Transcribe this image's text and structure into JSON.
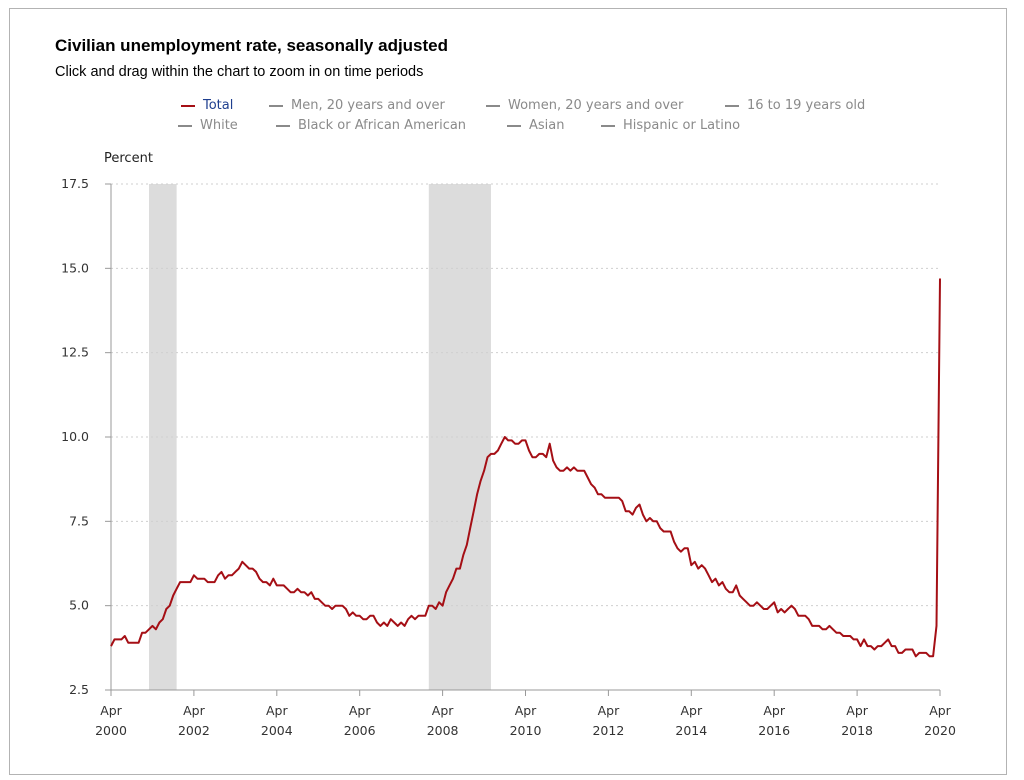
{
  "header": {
    "title": "Civilian unemployment rate, seasonally adjusted",
    "subtitle": "Click and drag within the chart to zoom in on time periods"
  },
  "legend": {
    "items": [
      {
        "label": "Total",
        "active": true
      },
      {
        "label": "Men, 20 years and over",
        "active": false
      },
      {
        "label": "Women, 20 years and over",
        "active": false
      },
      {
        "label": "16 to 19 years old",
        "active": false
      },
      {
        "label": "White",
        "active": false
      },
      {
        "label": "Black or African American",
        "active": false
      },
      {
        "label": "Asian",
        "active": false
      },
      {
        "label": "Hispanic or Latino",
        "active": false
      }
    ]
  },
  "colors": {
    "series_line": "#a50f15",
    "active_legend_text": "#1f3f8f",
    "inactive_legend": "#8a8a8a",
    "recession_band": "#dcdcdc",
    "gridline": "#cfcfcf",
    "axis": "#999999"
  },
  "chart_data": {
    "type": "line",
    "title": "Civilian unemployment rate, seasonally adjusted",
    "ylabel": "Percent",
    "xlabel": "",
    "ylim": [
      2.5,
      17.5
    ],
    "yticks": [
      "2.5",
      "5.0",
      "7.5",
      "10.0",
      "12.5",
      "15.0",
      "17.5"
    ],
    "xticks": [
      {
        "month": "Apr",
        "year": "2000",
        "date": "2000-04"
      },
      {
        "month": "Apr",
        "year": "2002",
        "date": "2002-04"
      },
      {
        "month": "Apr",
        "year": "2004",
        "date": "2004-04"
      },
      {
        "month": "Apr",
        "year": "2006",
        "date": "2006-04"
      },
      {
        "month": "Apr",
        "year": "2008",
        "date": "2008-04"
      },
      {
        "month": "Apr",
        "year": "2010",
        "date": "2010-04"
      },
      {
        "month": "Apr",
        "year": "2012",
        "date": "2012-04"
      },
      {
        "month": "Apr",
        "year": "2014",
        "date": "2014-04"
      },
      {
        "month": "Apr",
        "year": "2016",
        "date": "2016-04"
      },
      {
        "month": "Apr",
        "year": "2018",
        "date": "2018-04"
      },
      {
        "month": "Apr",
        "year": "2020",
        "date": "2020-04"
      }
    ],
    "grid": "horizontal dotted",
    "legend_placement": "top",
    "recession_bands": [
      {
        "start": "2001-03",
        "end": "2001-11"
      },
      {
        "start": "2007-12",
        "end": "2009-06"
      }
    ],
    "series": [
      {
        "name": "Total",
        "points": [
          [
            "2000-04",
            3.8
          ],
          [
            "2000-05",
            4.0
          ],
          [
            "2000-06",
            4.0
          ],
          [
            "2000-07",
            4.0
          ],
          [
            "2000-08",
            4.1
          ],
          [
            "2000-09",
            3.9
          ],
          [
            "2000-10",
            3.9
          ],
          [
            "2000-11",
            3.9
          ],
          [
            "2000-12",
            3.9
          ],
          [
            "2001-01",
            4.2
          ],
          [
            "2001-02",
            4.2
          ],
          [
            "2001-03",
            4.3
          ],
          [
            "2001-04",
            4.4
          ],
          [
            "2001-05",
            4.3
          ],
          [
            "2001-06",
            4.5
          ],
          [
            "2001-07",
            4.6
          ],
          [
            "2001-08",
            4.9
          ],
          [
            "2001-09",
            5.0
          ],
          [
            "2001-10",
            5.3
          ],
          [
            "2001-11",
            5.5
          ],
          [
            "2001-12",
            5.7
          ],
          [
            "2002-01",
            5.7
          ],
          [
            "2002-02",
            5.7
          ],
          [
            "2002-03",
            5.7
          ],
          [
            "2002-04",
            5.9
          ],
          [
            "2002-05",
            5.8
          ],
          [
            "2002-06",
            5.8
          ],
          [
            "2002-07",
            5.8
          ],
          [
            "2002-08",
            5.7
          ],
          [
            "2002-09",
            5.7
          ],
          [
            "2002-10",
            5.7
          ],
          [
            "2002-11",
            5.9
          ],
          [
            "2002-12",
            6.0
          ],
          [
            "2003-01",
            5.8
          ],
          [
            "2003-02",
            5.9
          ],
          [
            "2003-03",
            5.9
          ],
          [
            "2003-04",
            6.0
          ],
          [
            "2003-05",
            6.1
          ],
          [
            "2003-06",
            6.3
          ],
          [
            "2003-07",
            6.2
          ],
          [
            "2003-08",
            6.1
          ],
          [
            "2003-09",
            6.1
          ],
          [
            "2003-10",
            6.0
          ],
          [
            "2003-11",
            5.8
          ],
          [
            "2003-12",
            5.7
          ],
          [
            "2004-01",
            5.7
          ],
          [
            "2004-02",
            5.6
          ],
          [
            "2004-03",
            5.8
          ],
          [
            "2004-04",
            5.6
          ],
          [
            "2004-05",
            5.6
          ],
          [
            "2004-06",
            5.6
          ],
          [
            "2004-07",
            5.5
          ],
          [
            "2004-08",
            5.4
          ],
          [
            "2004-09",
            5.4
          ],
          [
            "2004-10",
            5.5
          ],
          [
            "2004-11",
            5.4
          ],
          [
            "2004-12",
            5.4
          ],
          [
            "2005-01",
            5.3
          ],
          [
            "2005-02",
            5.4
          ],
          [
            "2005-03",
            5.2
          ],
          [
            "2005-04",
            5.2
          ],
          [
            "2005-05",
            5.1
          ],
          [
            "2005-06",
            5.0
          ],
          [
            "2005-07",
            5.0
          ],
          [
            "2005-08",
            4.9
          ],
          [
            "2005-09",
            5.0
          ],
          [
            "2005-10",
            5.0
          ],
          [
            "2005-11",
            5.0
          ],
          [
            "2005-12",
            4.9
          ],
          [
            "2006-01",
            4.7
          ],
          [
            "2006-02",
            4.8
          ],
          [
            "2006-03",
            4.7
          ],
          [
            "2006-04",
            4.7
          ],
          [
            "2006-05",
            4.6
          ],
          [
            "2006-06",
            4.6
          ],
          [
            "2006-07",
            4.7
          ],
          [
            "2006-08",
            4.7
          ],
          [
            "2006-09",
            4.5
          ],
          [
            "2006-10",
            4.4
          ],
          [
            "2006-11",
            4.5
          ],
          [
            "2006-12",
            4.4
          ],
          [
            "2007-01",
            4.6
          ],
          [
            "2007-02",
            4.5
          ],
          [
            "2007-03",
            4.4
          ],
          [
            "2007-04",
            4.5
          ],
          [
            "2007-05",
            4.4
          ],
          [
            "2007-06",
            4.6
          ],
          [
            "2007-07",
            4.7
          ],
          [
            "2007-08",
            4.6
          ],
          [
            "2007-09",
            4.7
          ],
          [
            "2007-10",
            4.7
          ],
          [
            "2007-11",
            4.7
          ],
          [
            "2007-12",
            5.0
          ],
          [
            "2008-01",
            5.0
          ],
          [
            "2008-02",
            4.9
          ],
          [
            "2008-03",
            5.1
          ],
          [
            "2008-04",
            5.0
          ],
          [
            "2008-05",
            5.4
          ],
          [
            "2008-06",
            5.6
          ],
          [
            "2008-07",
            5.8
          ],
          [
            "2008-08",
            6.1
          ],
          [
            "2008-09",
            6.1
          ],
          [
            "2008-10",
            6.5
          ],
          [
            "2008-11",
            6.8
          ],
          [
            "2008-12",
            7.3
          ],
          [
            "2009-01",
            7.8
          ],
          [
            "2009-02",
            8.3
          ],
          [
            "2009-03",
            8.7
          ],
          [
            "2009-04",
            9.0
          ],
          [
            "2009-05",
            9.4
          ],
          [
            "2009-06",
            9.5
          ],
          [
            "2009-07",
            9.5
          ],
          [
            "2009-08",
            9.6
          ],
          [
            "2009-09",
            9.8
          ],
          [
            "2009-10",
            10.0
          ],
          [
            "2009-11",
            9.9
          ],
          [
            "2009-12",
            9.9
          ],
          [
            "2010-01",
            9.8
          ],
          [
            "2010-02",
            9.8
          ],
          [
            "2010-03",
            9.9
          ],
          [
            "2010-04",
            9.9
          ],
          [
            "2010-05",
            9.6
          ],
          [
            "2010-06",
            9.4
          ],
          [
            "2010-07",
            9.4
          ],
          [
            "2010-08",
            9.5
          ],
          [
            "2010-09",
            9.5
          ],
          [
            "2010-10",
            9.4
          ],
          [
            "2010-11",
            9.8
          ],
          [
            "2010-12",
            9.3
          ],
          [
            "2011-01",
            9.1
          ],
          [
            "2011-02",
            9.0
          ],
          [
            "2011-03",
            9.0
          ],
          [
            "2011-04",
            9.1
          ],
          [
            "2011-05",
            9.0
          ],
          [
            "2011-06",
            9.1
          ],
          [
            "2011-07",
            9.0
          ],
          [
            "2011-08",
            9.0
          ],
          [
            "2011-09",
            9.0
          ],
          [
            "2011-10",
            8.8
          ],
          [
            "2011-11",
            8.6
          ],
          [
            "2011-12",
            8.5
          ],
          [
            "2012-01",
            8.3
          ],
          [
            "2012-02",
            8.3
          ],
          [
            "2012-03",
            8.2
          ],
          [
            "2012-04",
            8.2
          ],
          [
            "2012-05",
            8.2
          ],
          [
            "2012-06",
            8.2
          ],
          [
            "2012-07",
            8.2
          ],
          [
            "2012-08",
            8.1
          ],
          [
            "2012-09",
            7.8
          ],
          [
            "2012-10",
            7.8
          ],
          [
            "2012-11",
            7.7
          ],
          [
            "2012-12",
            7.9
          ],
          [
            "2013-01",
            8.0
          ],
          [
            "2013-02",
            7.7
          ],
          [
            "2013-03",
            7.5
          ],
          [
            "2013-04",
            7.6
          ],
          [
            "2013-05",
            7.5
          ],
          [
            "2013-06",
            7.5
          ],
          [
            "2013-07",
            7.3
          ],
          [
            "2013-08",
            7.2
          ],
          [
            "2013-09",
            7.2
          ],
          [
            "2013-10",
            7.2
          ],
          [
            "2013-11",
            6.9
          ],
          [
            "2013-12",
            6.7
          ],
          [
            "2014-01",
            6.6
          ],
          [
            "2014-02",
            6.7
          ],
          [
            "2014-03",
            6.7
          ],
          [
            "2014-04",
            6.2
          ],
          [
            "2014-05",
            6.3
          ],
          [
            "2014-06",
            6.1
          ],
          [
            "2014-07",
            6.2
          ],
          [
            "2014-08",
            6.1
          ],
          [
            "2014-09",
            5.9
          ],
          [
            "2014-10",
            5.7
          ],
          [
            "2014-11",
            5.8
          ],
          [
            "2014-12",
            5.6
          ],
          [
            "2015-01",
            5.7
          ],
          [
            "2015-02",
            5.5
          ],
          [
            "2015-03",
            5.4
          ],
          [
            "2015-04",
            5.4
          ],
          [
            "2015-05",
            5.6
          ],
          [
            "2015-06",
            5.3
          ],
          [
            "2015-07",
            5.2
          ],
          [
            "2015-08",
            5.1
          ],
          [
            "2015-09",
            5.0
          ],
          [
            "2015-10",
            5.0
          ],
          [
            "2015-11",
            5.1
          ],
          [
            "2015-12",
            5.0
          ],
          [
            "2016-01",
            4.9
          ],
          [
            "2016-02",
            4.9
          ],
          [
            "2016-03",
            5.0
          ],
          [
            "2016-04",
            5.1
          ],
          [
            "2016-05",
            4.8
          ],
          [
            "2016-06",
            4.9
          ],
          [
            "2016-07",
            4.8
          ],
          [
            "2016-08",
            4.9
          ],
          [
            "2016-09",
            5.0
          ],
          [
            "2016-10",
            4.9
          ],
          [
            "2016-11",
            4.7
          ],
          [
            "2016-12",
            4.7
          ],
          [
            "2017-01",
            4.7
          ],
          [
            "2017-02",
            4.6
          ],
          [
            "2017-03",
            4.4
          ],
          [
            "2017-04",
            4.4
          ],
          [
            "2017-05",
            4.4
          ],
          [
            "2017-06",
            4.3
          ],
          [
            "2017-07",
            4.3
          ],
          [
            "2017-08",
            4.4
          ],
          [
            "2017-09",
            4.3
          ],
          [
            "2017-10",
            4.2
          ],
          [
            "2017-11",
            4.2
          ],
          [
            "2017-12",
            4.1
          ],
          [
            "2018-01",
            4.1
          ],
          [
            "2018-02",
            4.1
          ],
          [
            "2018-03",
            4.0
          ],
          [
            "2018-04",
            4.0
          ],
          [
            "2018-05",
            3.8
          ],
          [
            "2018-06",
            4.0
          ],
          [
            "2018-07",
            3.8
          ],
          [
            "2018-08",
            3.8
          ],
          [
            "2018-09",
            3.7
          ],
          [
            "2018-10",
            3.8
          ],
          [
            "2018-11",
            3.8
          ],
          [
            "2018-12",
            3.9
          ],
          [
            "2019-01",
            4.0
          ],
          [
            "2019-02",
            3.8
          ],
          [
            "2019-03",
            3.8
          ],
          [
            "2019-04",
            3.6
          ],
          [
            "2019-05",
            3.6
          ],
          [
            "2019-06",
            3.7
          ],
          [
            "2019-07",
            3.7
          ],
          [
            "2019-08",
            3.7
          ],
          [
            "2019-09",
            3.5
          ],
          [
            "2019-10",
            3.6
          ],
          [
            "2019-11",
            3.6
          ],
          [
            "2019-12",
            3.6
          ],
          [
            "2020-01",
            3.5
          ],
          [
            "2020-02",
            3.5
          ],
          [
            "2020-03",
            4.4
          ],
          [
            "2020-04",
            14.7
          ]
        ]
      }
    ]
  }
}
